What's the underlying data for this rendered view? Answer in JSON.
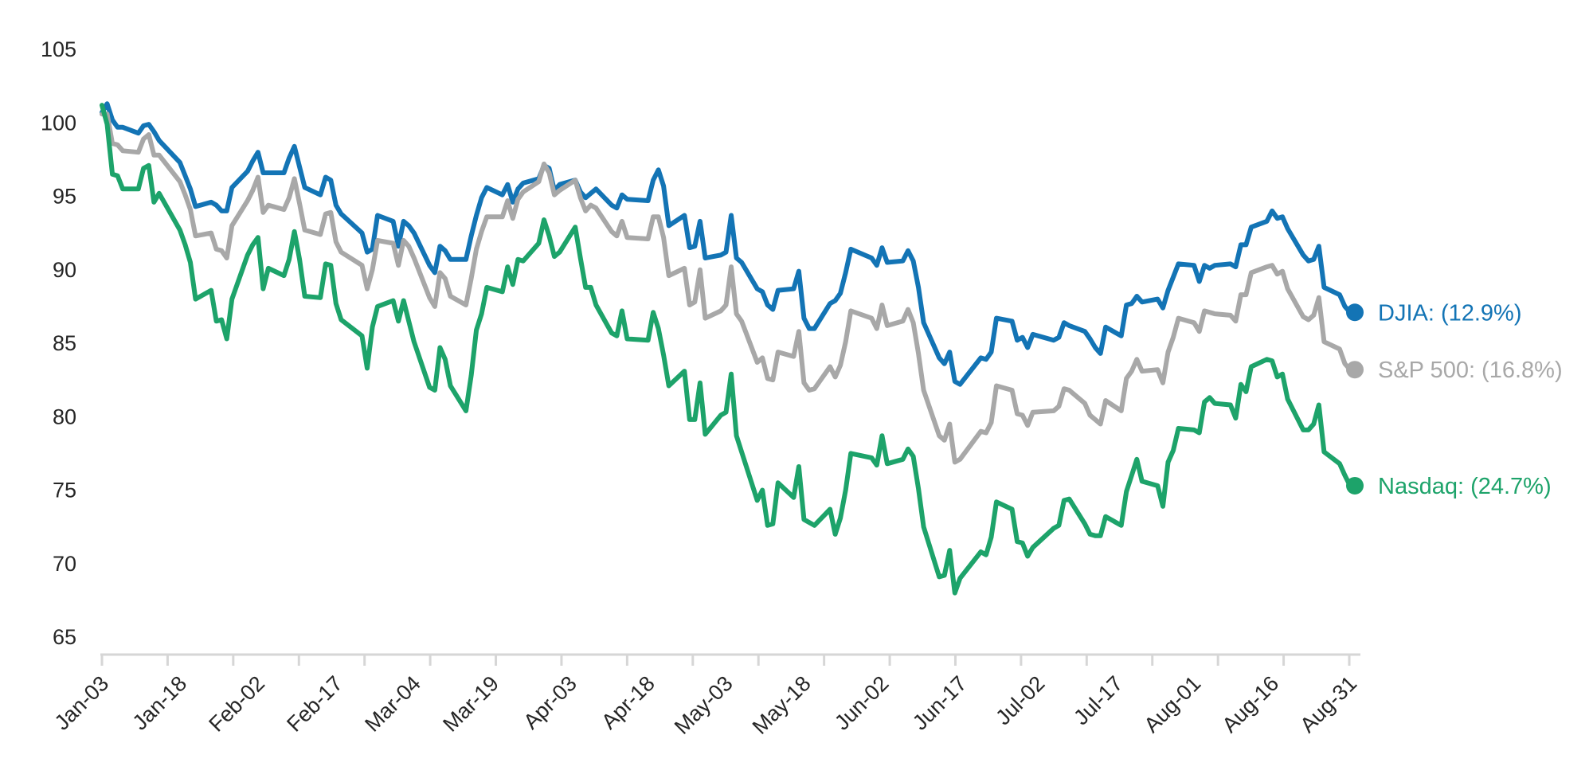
{
  "chart_data": {
    "type": "line",
    "title": "",
    "grid": false,
    "background": "#ffffff",
    "axis_color": "#d6d6d6",
    "tick_label_color": "#262626",
    "y_axis": {
      "min": 65,
      "max": 105,
      "step": 5,
      "ticks": [
        105,
        100,
        95,
        90,
        85,
        80,
        75,
        70,
        65
      ]
    },
    "x_axis": {
      "labels": [
        "Jan-03",
        "Jan-18",
        "Feb-02",
        "Feb-17",
        "Mar-04",
        "Mar-19",
        "Apr-03",
        "Apr-18",
        "May-03",
        "May-18",
        "Jun-02",
        "Jun-17",
        "Jul-02",
        "Jul-17",
        "Aug-01",
        "Aug-16",
        "Aug-31"
      ],
      "tick_count": 20
    },
    "dates": [
      "Jan-03",
      "Jan-04",
      "Jan-05",
      "Jan-06",
      "Jan-07",
      "Jan-10",
      "Jan-11",
      "Jan-12",
      "Jan-13",
      "Jan-14",
      "Jan-18",
      "Jan-19",
      "Jan-20",
      "Jan-21",
      "Jan-24",
      "Jan-25",
      "Jan-26",
      "Jan-27",
      "Jan-28",
      "Jan-31",
      "Feb-01",
      "Feb-02",
      "Feb-03",
      "Feb-04",
      "Feb-07",
      "Feb-08",
      "Feb-09",
      "Feb-10",
      "Feb-11",
      "Feb-14",
      "Feb-15",
      "Feb-16",
      "Feb-17",
      "Feb-18",
      "Feb-22",
      "Feb-23",
      "Feb-24",
      "Feb-25",
      "Feb-28",
      "Mar-01",
      "Mar-02",
      "Mar-03",
      "Mar-04",
      "Mar-07",
      "Mar-08",
      "Mar-09",
      "Mar-10",
      "Mar-11",
      "Mar-14",
      "Mar-15",
      "Mar-16",
      "Mar-17",
      "Mar-18",
      "Mar-21",
      "Mar-22",
      "Mar-23",
      "Mar-24",
      "Mar-25",
      "Mar-28",
      "Mar-29",
      "Mar-30",
      "Mar-31",
      "Apr-01",
      "Apr-04",
      "Apr-05",
      "Apr-06",
      "Apr-07",
      "Apr-08",
      "Apr-11",
      "Apr-12",
      "Apr-13",
      "Apr-14",
      "Apr-18",
      "Apr-19",
      "Apr-20",
      "Apr-21",
      "Apr-22",
      "Apr-25",
      "Apr-26",
      "Apr-27",
      "Apr-28",
      "Apr-29",
      "May-02",
      "May-03",
      "May-04",
      "May-05",
      "May-06",
      "May-09",
      "May-10",
      "May-11",
      "May-12",
      "May-13",
      "May-16",
      "May-17",
      "May-18",
      "May-19",
      "May-20",
      "May-23",
      "May-24",
      "May-25",
      "May-26",
      "May-27",
      "May-31",
      "Jun-01",
      "Jun-02",
      "Jun-03",
      "Jun-06",
      "Jun-07",
      "Jun-08",
      "Jun-09",
      "Jun-10",
      "Jun-13",
      "Jun-14",
      "Jun-15",
      "Jun-16",
      "Jun-17",
      "Jun-21",
      "Jun-22",
      "Jun-23",
      "Jun-24",
      "Jun-27",
      "Jun-28",
      "Jun-29",
      "Jun-30",
      "Jul-01",
      "Jul-05",
      "Jul-06",
      "Jul-07",
      "Jul-08",
      "Jul-11",
      "Jul-12",
      "Jul-13",
      "Jul-14",
      "Jul-15",
      "Jul-18",
      "Jul-19",
      "Jul-20",
      "Jul-21",
      "Jul-22",
      "Jul-25",
      "Jul-26",
      "Jul-27",
      "Jul-28",
      "Jul-29",
      "Aug-01",
      "Aug-02",
      "Aug-03",
      "Aug-04",
      "Aug-05",
      "Aug-08",
      "Aug-09",
      "Aug-10",
      "Aug-11",
      "Aug-12",
      "Aug-15",
      "Aug-16",
      "Aug-17",
      "Aug-18",
      "Aug-19",
      "Aug-22",
      "Aug-23",
      "Aug-24",
      "Aug-25",
      "Aug-26",
      "Aug-29",
      "Aug-30",
      "Aug-31"
    ],
    "series": [
      {
        "name": "DJIA",
        "color": "#1374b5",
        "end_label": "DJIA: (12.9%)",
        "end_value_pct": "-12.9%",
        "values": [
          100.7,
          101.3,
          100.2,
          99.7,
          99.7,
          99.3,
          99.8,
          99.9,
          99.4,
          98.8,
          97.3,
          96.4,
          95.5,
          94.3,
          94.6,
          94.4,
          94.0,
          94.0,
          95.6,
          96.7,
          97.4,
          98.0,
          96.6,
          96.6,
          96.6,
          97.6,
          98.4,
          97.0,
          95.6,
          95.1,
          96.3,
          96.1,
          94.4,
          93.8,
          92.5,
          91.2,
          91.4,
          93.7,
          93.3,
          91.6,
          93.3,
          93.0,
          92.5,
          90.3,
          89.8,
          91.6,
          91.3,
          90.7,
          90.7,
          92.3,
          93.7,
          94.9,
          95.6,
          95.1,
          95.8,
          94.6,
          95.5,
          95.9,
          96.2,
          97.1,
          96.9,
          95.4,
          95.8,
          96.1,
          95.3,
          94.9,
          95.2,
          95.5,
          94.4,
          94.2,
          95.1,
          94.8,
          94.7,
          96.1,
          96.8,
          95.7,
          93.0,
          93.7,
          91.5,
          91.6,
          93.3,
          90.8,
          91.0,
          91.2,
          93.7,
          90.8,
          90.5,
          88.7,
          88.5,
          87.6,
          87.3,
          88.6,
          88.7,
          89.9,
          86.7,
          86.0,
          86.0,
          87.7,
          87.9,
          88.4,
          89.8,
          91.4,
          90.8,
          90.3,
          91.5,
          90.5,
          90.6,
          91.3,
          90.6,
          88.8,
          86.4,
          84.0,
          83.6,
          84.4,
          82.4,
          82.2,
          84.0,
          83.9,
          84.4,
          86.7,
          86.5,
          85.2,
          85.4,
          84.7,
          85.6,
          85.2,
          85.4,
          86.4,
          86.2,
          85.8,
          85.3,
          84.7,
          84.3,
          86.1,
          85.5,
          87.6,
          87.7,
          88.2,
          87.8,
          88.0,
          87.4,
          88.6,
          89.5,
          90.4,
          90.3,
          89.2,
          90.3,
          90.1,
          90.3,
          90.4,
          90.2,
          91.7,
          91.7,
          92.9,
          93.3,
          94.0,
          93.5,
          93.6,
          92.8,
          91.0,
          90.6,
          90.7,
          91.6,
          88.8,
          88.3,
          87.5,
          87.1
        ]
      },
      {
        "name": "S&P 500",
        "color": "#a8a8a8",
        "end_label": "S&P 500: (16.8%)",
        "end_value_pct": "-16.8%",
        "values": [
          100.6,
          100.6,
          98.6,
          98.5,
          98.1,
          98.0,
          98.9,
          99.2,
          97.8,
          97.8,
          96.0,
          95.1,
          94.1,
          92.3,
          92.5,
          91.4,
          91.3,
          90.8,
          93.0,
          94.7,
          95.4,
          96.3,
          93.9,
          94.4,
          94.1,
          94.9,
          96.2,
          94.5,
          92.7,
          92.4,
          93.8,
          93.9,
          91.9,
          91.2,
          90.3,
          88.7,
          90.0,
          92.0,
          91.8,
          90.3,
          92.0,
          91.6,
          90.8,
          88.1,
          87.5,
          89.8,
          89.4,
          88.2,
          87.6,
          89.4,
          91.4,
          92.6,
          93.6,
          93.6,
          94.7,
          93.5,
          94.8,
          95.3,
          96.0,
          97.2,
          96.6,
          95.1,
          95.4,
          96.1,
          94.9,
          94.0,
          94.4,
          94.2,
          92.6,
          92.3,
          93.3,
          92.2,
          92.1,
          93.6,
          93.6,
          92.2,
          89.6,
          90.1,
          87.6,
          87.8,
          90.0,
          86.7,
          87.2,
          87.6,
          90.2,
          87.0,
          86.5,
          83.7,
          84.0,
          82.6,
          82.5,
          84.4,
          84.1,
          85.8,
          82.3,
          81.8,
          81.9,
          83.4,
          82.7,
          83.5,
          85.1,
          87.2,
          86.7,
          86.0,
          87.6,
          86.2,
          86.5,
          87.3,
          86.4,
          84.3,
          81.8,
          78.7,
          78.4,
          79.5,
          76.9,
          77.1,
          79.0,
          78.9,
          79.6,
          82.1,
          81.8,
          80.2,
          80.1,
          79.4,
          80.3,
          80.4,
          80.7,
          81.9,
          81.8,
          80.9,
          80.1,
          79.8,
          79.5,
          81.1,
          80.4,
          82.6,
          83.1,
          83.9,
          83.1,
          83.2,
          82.3,
          84.4,
          85.4,
          86.7,
          86.4,
          85.8,
          87.2,
          87.1,
          87.0,
          86.9,
          86.5,
          88.3,
          88.3,
          89.8,
          90.2,
          90.3,
          89.7,
          89.9,
          88.7,
          86.8,
          86.6,
          86.9,
          88.1,
          85.1,
          84.6,
          83.6,
          83.2
        ]
      },
      {
        "name": "Nasdaq",
        "color": "#1da36a",
        "end_label": "Nasdaq: (24.7%)",
        "end_value_pct": "-24.7%",
        "values": [
          101.2,
          99.9,
          96.5,
          96.4,
          95.5,
          95.5,
          96.9,
          97.1,
          94.6,
          95.2,
          92.7,
          91.7,
          90.5,
          88.0,
          88.6,
          86.5,
          86.6,
          85.3,
          88.0,
          91.0,
          91.7,
          92.2,
          88.7,
          90.1,
          89.6,
          90.7,
          92.6,
          90.7,
          88.2,
          88.1,
          90.4,
          90.3,
          87.7,
          86.6,
          85.5,
          83.3,
          86.1,
          87.5,
          87.9,
          86.5,
          87.9,
          86.5,
          85.1,
          82.0,
          81.8,
          84.7,
          83.9,
          82.1,
          80.4,
          82.8,
          85.9,
          87.0,
          88.8,
          88.5,
          90.2,
          89.0,
          90.7,
          90.6,
          91.8,
          93.4,
          92.3,
          90.9,
          91.2,
          92.9,
          90.8,
          88.8,
          88.8,
          87.6,
          85.7,
          85.5,
          87.2,
          85.3,
          85.2,
          87.1,
          86.0,
          84.2,
          82.1,
          83.1,
          79.8,
          79.8,
          82.3,
          78.8,
          80.1,
          80.3,
          82.9,
          78.7,
          77.6,
          74.3,
          75.0,
          72.6,
          72.7,
          75.5,
          74.5,
          76.6,
          73.0,
          72.8,
          72.6,
          73.7,
          72.0,
          73.1,
          75.0,
          77.5,
          77.2,
          76.7,
          78.7,
          76.8,
          77.1,
          77.8,
          77.3,
          75.1,
          72.5,
          69.1,
          69.2,
          70.9,
          68.0,
          69.0,
          70.8,
          70.6,
          71.8,
          74.2,
          73.7,
          71.5,
          71.4,
          70.5,
          71.1,
          72.4,
          72.6,
          74.3,
          74.4,
          72.7,
          72.0,
          71.9,
          71.9,
          73.2,
          72.6,
          74.9,
          76.0,
          77.1,
          75.6,
          75.3,
          73.9,
          76.9,
          77.7,
          79.2,
          79.1,
          78.9,
          81.0,
          81.3,
          80.9,
          80.8,
          79.9,
          82.2,
          81.7,
          83.4,
          83.9,
          83.8,
          82.7,
          82.9,
          81.2,
          79.1,
          79.1,
          79.5,
          80.8,
          77.6,
          76.8,
          76.0,
          75.3
        ]
      }
    ]
  }
}
